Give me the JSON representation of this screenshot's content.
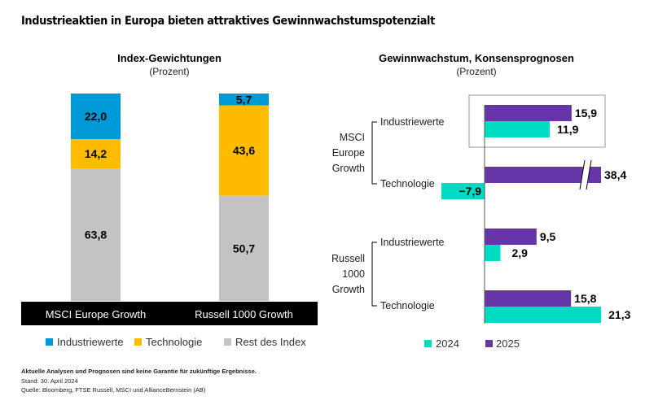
{
  "title": "Industrieaktien in Europa bieten attraktives Gewinnwachstumspotenzialt",
  "footer": {
    "disclaimer": "Aktuelle Analysen und Prognosen sind keine Garantie für zukünftige Ergebnisse.",
    "date": "Stand: 30. April 2024",
    "source": "Quelle: Bloomberg, FTSE Russell, MSCI und AllianceBernstein (AB)"
  },
  "colors": {
    "industriewerte": "#0099d8",
    "technologie": "#ffbb00",
    "rest": "#c3c3c3",
    "y2024": "#00dcc4",
    "y2025": "#6636a8"
  },
  "chart_data": [
    {
      "type": "bar",
      "stacked": true,
      "title": "Index-Gewichtungen",
      "subtitle": "(Prozent)",
      "categories": [
        "MSCI Europe Growth",
        "Russell 1000 Growth"
      ],
      "series": [
        {
          "name": "Industriewerte",
          "values": [
            22.0,
            5.7
          ],
          "labels": [
            "22,0",
            "5,7"
          ]
        },
        {
          "name": "Technologie",
          "values": [
            14.2,
            43.6
          ],
          "labels": [
            "14,2",
            "43,6"
          ]
        },
        {
          "name": "Rest des Index",
          "values": [
            63.8,
            50.7
          ],
          "labels": [
            "63,8",
            "50,7"
          ]
        }
      ],
      "ylim": [
        0,
        100
      ],
      "legend_position": "bottom"
    },
    {
      "type": "bar",
      "orientation": "horizontal",
      "title": "Gewinnwachstum, Konsensprognosen",
      "subtitle": "(Prozent)",
      "groups": [
        {
          "name": "MSCI Europe Growth",
          "label_lines": [
            "MSCI",
            "Europe",
            "Growth"
          ],
          "categories": [
            "Industriewerte",
            "Technologie"
          ]
        },
        {
          "name": "Russell 1000 Growth",
          "label_lines": [
            "Russell",
            "1000",
            "Growth"
          ],
          "categories": [
            "Industriewerte",
            "Technologie"
          ]
        }
      ],
      "series": [
        {
          "name": "2025",
          "values": [
            15.9,
            38.4,
            9.5,
            15.8
          ],
          "labels": [
            "15,9",
            "38,4",
            "9,5",
            "15,8"
          ]
        },
        {
          "name": "2024",
          "values": [
            11.9,
            -7.9,
            2.9,
            21.3
          ],
          "labels": [
            "11,9",
            "−7,9",
            "2,9",
            "21,3"
          ]
        }
      ],
      "axis_break_on": "MSCI Europe Growth Technologie 2025",
      "highlighted": "MSCI Europe Growth Industriewerte",
      "legend": [
        "2024",
        "2025"
      ],
      "legend_position": "bottom"
    }
  ]
}
